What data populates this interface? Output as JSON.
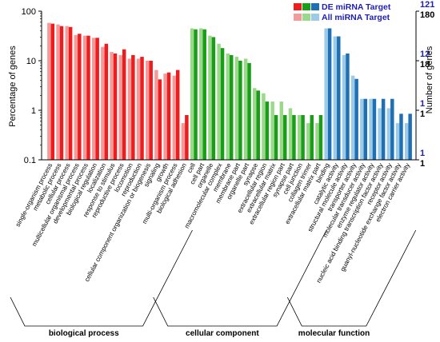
{
  "chart_data": {
    "type": "bar",
    "yscale": "log",
    "ylabel_left": "Percentage of genes",
    "ylabel_right": "Number of genes",
    "ylim": [
      0.1,
      100
    ],
    "left_ticks": [
      "100",
      "10",
      "1",
      "0.1"
    ],
    "right_ticks": [
      {
        "label": "121",
        "color": "#1e1eb4"
      },
      {
        "label": "180",
        "color": "#000000"
      },
      {
        "label": "12",
        "color": "#1e1eb4"
      },
      {
        "label": "18",
        "color": "#000000"
      },
      {
        "label": "1",
        "color": "#1e1eb4"
      },
      {
        "label": "1",
        "color": "#000000"
      },
      {
        "label": "1",
        "color": "#1e1eb4"
      },
      {
        "label": "1",
        "color": "#000000"
      }
    ],
    "legend": {
      "position": "top-right",
      "entries": [
        {
          "label": "DE miRNA Target",
          "label_color": "#1e1eb4",
          "swatches": [
            "#ee1c1c",
            "#1a9e1a",
            "#1f6fb4"
          ]
        },
        {
          "label": "All miRNA Target",
          "label_color": "#1e1eb4",
          "swatches": [
            "#f49a9a",
            "#9ad98a",
            "#9ccbe8"
          ]
        }
      ]
    },
    "groups": [
      {
        "name": "biological process",
        "dark": "#ee1c1c",
        "light": "#f49a9a"
      },
      {
        "name": "cellular component",
        "dark": "#1a9e1a",
        "light": "#9ad98a"
      },
      {
        "name": "molecular function",
        "dark": "#1f6fb4",
        "light": "#9ccbe8"
      }
    ],
    "categories": [
      {
        "label": "single-organism process",
        "group": 0,
        "all": 58,
        "de": 56
      },
      {
        "label": "metabolic process",
        "group": 0,
        "all": 54,
        "de": 50
      },
      {
        "label": "cellular process",
        "group": 0,
        "all": 50,
        "de": 48
      },
      {
        "label": "multicellular organismal process",
        "group": 0,
        "all": 33,
        "de": 35
      },
      {
        "label": "developmental process",
        "group": 0,
        "all": 32,
        "de": 32
      },
      {
        "label": "biological regulation",
        "group": 0,
        "all": 29,
        "de": 29
      },
      {
        "label": "localization",
        "group": 0,
        "all": 19,
        "de": 22
      },
      {
        "label": "response to stimulus",
        "group": 0,
        "all": 15,
        "de": 14
      },
      {
        "label": "reproductive process",
        "group": 0,
        "all": 13,
        "de": 17
      },
      {
        "label": "locomotion",
        "group": 0,
        "all": 11,
        "de": 13
      },
      {
        "label": "reproduction",
        "group": 0,
        "all": 11,
        "de": 12
      },
      {
        "label": "cellular component organization or biogenesis",
        "group": 0,
        "all": 10,
        "de": 10
      },
      {
        "label": "signaling",
        "group": 0,
        "all": 6.5,
        "de": 4.2
      },
      {
        "label": "growth",
        "group": 0,
        "all": 5.5,
        "de": 5.8
      },
      {
        "label": "multi-organism process",
        "group": 0,
        "all": 5,
        "de": 6.5
      },
      {
        "label": "biological adhesion",
        "group": 0,
        "all": 0.55,
        "de": 0.8
      },
      {
        "label": "cell",
        "group": 1,
        "all": 45,
        "de": 43
      },
      {
        "label": "cell part",
        "group": 1,
        "all": 45,
        "de": 43
      },
      {
        "label": "organelle",
        "group": 1,
        "all": 32,
        "de": 30
      },
      {
        "label": "macromolecular complex",
        "group": 1,
        "all": 22,
        "de": 18
      },
      {
        "label": "membrane",
        "group": 1,
        "all": 14,
        "de": 13
      },
      {
        "label": "membrane part",
        "group": 1,
        "all": 12,
        "de": 10
      },
      {
        "label": "organelle part",
        "group": 1,
        "all": 11,
        "de": 9
      },
      {
        "label": "synapse",
        "group": 1,
        "all": 2.8,
        "de": 2.5
      },
      {
        "label": "extracellular region",
        "group": 1,
        "all": 2.2,
        "de": 1.5
      },
      {
        "label": "extracellular matrix",
        "group": 1,
        "all": 1.5,
        "de": 0.8
      },
      {
        "label": "extracellular region part",
        "group": 1,
        "all": 1.5,
        "de": 0.8
      },
      {
        "label": "synapse part",
        "group": 1,
        "all": 1.1,
        "de": 0.8
      },
      {
        "label": "cell junction",
        "group": 1,
        "all": 0.8,
        "de": 0.8
      },
      {
        "label": "collagen trimer",
        "group": 1,
        "all": 0.55,
        "de": 0.8
      },
      {
        "label": "extracellular matrix part",
        "group": 1,
        "all": 0.55,
        "de": 0.8
      },
      {
        "label": "binding",
        "group": 2,
        "all": 45,
        "de": 45
      },
      {
        "label": "catalytic activity",
        "group": 2,
        "all": 31,
        "de": 31
      },
      {
        "label": "structural molecule activity",
        "group": 2,
        "all": 13,
        "de": 14
      },
      {
        "label": "transporter activity",
        "group": 2,
        "all": 5,
        "de": 4.3
      },
      {
        "label": "molecular transducer activity",
        "group": 2,
        "all": 1.7,
        "de": 1.7
      },
      {
        "label": "enzyme regulator activity",
        "group": 2,
        "all": 1.7,
        "de": 1.7
      },
      {
        "label": "nucleic acid binding transcription factor activity",
        "group": 2,
        "all": 1.1,
        "de": 1.7
      },
      {
        "label": "receptor activity",
        "group": 2,
        "all": 1.1,
        "de": 1.7
      },
      {
        "label": "guanyl-nucleotide exchange factor activity",
        "group": 2,
        "all": 0.55,
        "de": 0.85
      },
      {
        "label": "electron carrier activity",
        "group": 2,
        "all": 0.55,
        "de": 0.85
      }
    ]
  }
}
